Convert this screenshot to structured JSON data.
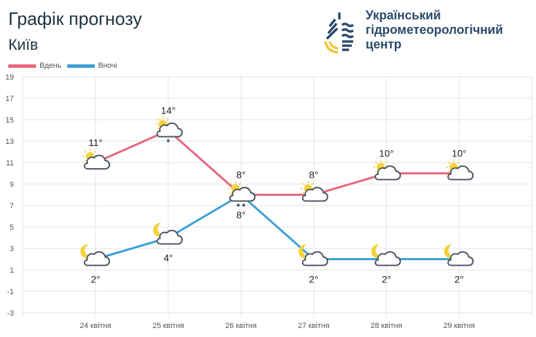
{
  "header": {
    "title": "Графік прогнозу",
    "city": "Київ"
  },
  "org": {
    "line1": "Український",
    "line2": "гідрометеорологічний",
    "line3": "центр"
  },
  "chart_data": {
    "type": "line",
    "categories": [
      "24 квітня",
      "25 квітня",
      "26 квітня",
      "27 квітня",
      "28 квітня",
      "29 квітня"
    ],
    "series": [
      {
        "name": "Вдень",
        "color": "#e8667f",
        "values": [
          11,
          14,
          8,
          8,
          10,
          10
        ],
        "icons": [
          "partly-cloudy-day",
          "partly-cloudy-day-light-rain",
          "partly-cloudy-day-rain",
          "partly-cloudy-day",
          "partly-cloudy-day",
          "partly-cloudy-day"
        ]
      },
      {
        "name": "Вночі",
        "color": "#3e9fd6",
        "values": [
          2,
          4,
          8,
          2,
          2,
          2
        ],
        "icons": [
          "partly-cloudy-night",
          "partly-cloudy-night",
          "partly-cloudy-day-rain",
          "partly-cloudy-night",
          "partly-cloudy-night",
          "partly-cloudy-night"
        ]
      }
    ],
    "yticks": [
      19,
      17,
      15,
      13,
      11,
      9,
      7,
      5,
      3,
      1,
      -1,
      -3
    ],
    "ylim": [
      -3,
      19
    ],
    "grid": true,
    "legend": "top-left",
    "value_suffix": "°"
  }
}
